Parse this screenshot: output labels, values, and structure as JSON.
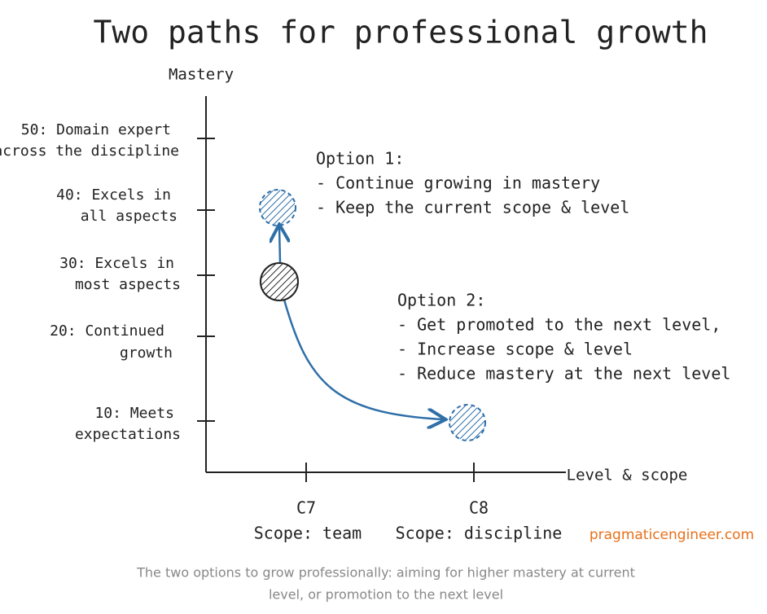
{
  "title": "Two paths for professional growth",
  "y_axis": {
    "label": "Mastery",
    "ticks": [
      {
        "lines": [
          "50: Domain expert",
          "across the discipline"
        ]
      },
      {
        "lines": [
          "40: Excels in",
          "all aspects"
        ]
      },
      {
        "lines": [
          "30: Excels in",
          "most aspects"
        ]
      },
      {
        "lines": [
          "20: Continued",
          "growth"
        ]
      },
      {
        "lines": [
          "10: Meets",
          "expectations"
        ]
      }
    ]
  },
  "x_axis": {
    "label": "Level & scope",
    "ticks": [
      {
        "lines": [
          "C7",
          "Scope: team"
        ]
      },
      {
        "lines": [
          "C8",
          "Scope: discipline"
        ]
      }
    ]
  },
  "options": [
    {
      "title": "Option 1:",
      "items": [
        "- Continue growing in mastery",
        "- Keep the current scope & level"
      ]
    },
    {
      "title": "Option 2:",
      "items": [
        "- Get promoted to the next level,",
        "- Increase scope & level",
        "- Reduce mastery at the next level"
      ]
    }
  ],
  "watermark": "pragmaticengineer.com",
  "caption": [
    "The two options to grow professionally: aiming for higher mastery at current",
    "level, or promotion to the next level"
  ]
}
